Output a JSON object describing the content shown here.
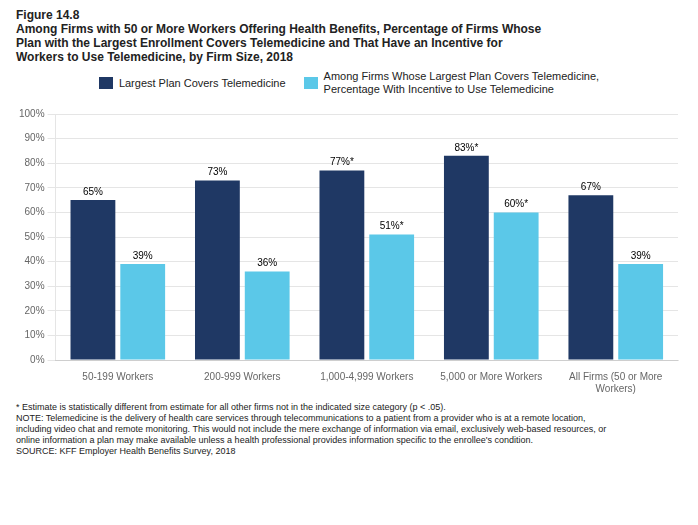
{
  "chart_data": {
    "type": "bar",
    "title": [
      "Figure 14.8",
      "Among Firms with 50 or More Workers Offering Health Benefits, Percentage of Firms Whose",
      "Plan with the Largest Enrollment Covers Telemedicine and That Have an Incentive for",
      "Workers to Use Telemedicine, by Firm Size, 2018"
    ],
    "categories": [
      "50-199 Workers",
      "200-999 Workers",
      "1,000-4,999 Workers",
      "5,000 or More Workers",
      "All Firms (50 or More\nWorkers)"
    ],
    "series": [
      {
        "name": "Largest Plan Covers Telemedicine",
        "color": "#1f3864",
        "values": [
          65,
          73,
          77,
          83,
          67
        ],
        "value_labels": [
          "65%",
          "73%",
          "77%*",
          "83%*",
          "67%"
        ]
      },
      {
        "name": "Among Firms Whose Largest Plan Covers Telemedicine,\nPercentage With Incentive to Use Telemedicine",
        "color": "#5bc8e8",
        "values": [
          39,
          36,
          51,
          60,
          39
        ],
        "value_labels": [
          "39%",
          "36%",
          "51%*",
          "60%*",
          "39%"
        ]
      }
    ],
    "ylim": [
      0,
      100
    ],
    "yticks": [
      {
        "value": 0,
        "label": "0%"
      },
      {
        "value": 10,
        "label": "10%"
      },
      {
        "value": 20,
        "label": "20%"
      },
      {
        "value": 30,
        "label": "30%"
      },
      {
        "value": 40,
        "label": "40%"
      },
      {
        "value": 50,
        "label": "50%"
      },
      {
        "value": 60,
        "label": "60%"
      },
      {
        "value": 70,
        "label": "70%"
      },
      {
        "value": 80,
        "label": "80%"
      },
      {
        "value": 90,
        "label": "90%"
      },
      {
        "value": 100,
        "label": "100%"
      }
    ],
    "grid": true,
    "legend": "top",
    "data_labels": true,
    "annotations": [
      "* Estimate is statistically different from estimate for all other firms not in the indicated size category (p < .05).",
      "NOTE: Telemedicine is the delivery of health care services through telecommunications to a patient from a provider who is at a remote location,",
      "including video chat and remote monitoring. This would not include the mere exchange of information via email, exclusively web-based resources, or",
      "online information a plan may make available unless a health professional provides information specific to the enrollee's condition.",
      "SOURCE: KFF Employer Health Benefits Survey, 2018"
    ]
  }
}
